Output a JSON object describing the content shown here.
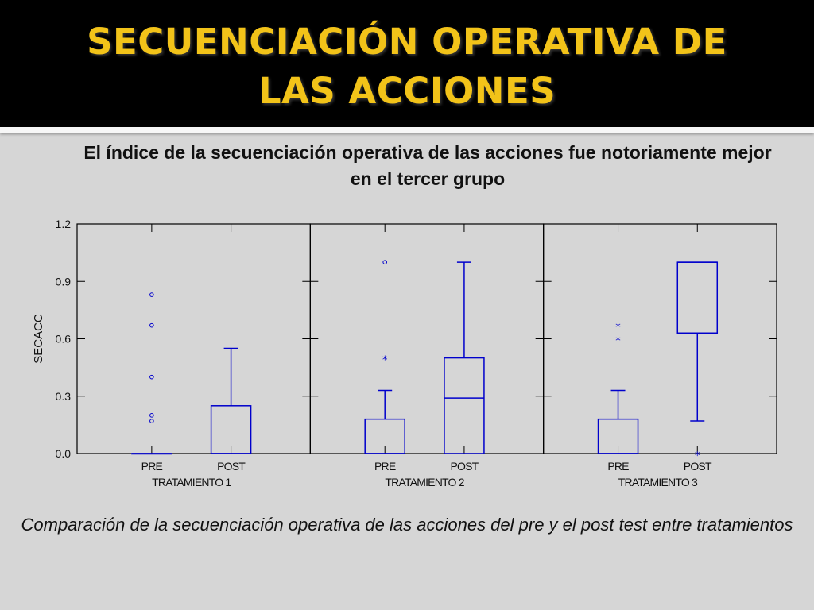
{
  "slide": {
    "title_line1": "SECUENCIACIÓN OPERATIVA DE",
    "title_line2": "LAS ACCIONES",
    "subtitle": "El índice de la secuenciación operativa de las acciones fue notoriamente mejor en el tercer grupo",
    "caption": "Comparación de la secuenciación operativa de las acciones del pre y el post test entre tratamientos"
  },
  "colors": {
    "title": "#f2c319",
    "box": "#0000cc"
  },
  "chart_data": {
    "type": "boxplot",
    "ylabel": "SECACC",
    "ylim": [
      0,
      1.2
    ],
    "yticks": [
      0,
      0.3,
      0.6,
      0.9,
      1.2
    ],
    "ytick_labels": [
      "0.0",
      "0.3",
      "0.6",
      "0.9",
      "1.2"
    ],
    "panels": [
      {
        "label": "TRATAMIENTO 1",
        "groups": [
          {
            "category": "PRE",
            "min": 0,
            "q1": 0,
            "median": 0,
            "q3": 0,
            "max": 0,
            "outliers_star": [],
            "outliers_circle": [
              0.17,
              0.2,
              0.4,
              0.67,
              0.83
            ]
          },
          {
            "category": "POST",
            "min": 0,
            "q1": 0,
            "median": 0,
            "q3": 0.25,
            "max": 0.55,
            "outliers_star": [],
            "outliers_circle": []
          }
        ]
      },
      {
        "label": "TRATAMIENTO 2",
        "groups": [
          {
            "category": "PRE",
            "min": 0,
            "q1": 0,
            "median": 0,
            "q3": 0.18,
            "max": 0.33,
            "outliers_star": [
              0.5
            ],
            "outliers_circle": [
              1.0
            ]
          },
          {
            "category": "POST",
            "min": 0,
            "q1": 0,
            "median": 0.29,
            "q3": 0.5,
            "max": 1.0,
            "outliers_star": [],
            "outliers_circle": []
          }
        ]
      },
      {
        "label": "TRATAMIENTO 3",
        "groups": [
          {
            "category": "PRE",
            "min": 0,
            "q1": 0,
            "median": 0,
            "q3": 0.18,
            "max": 0.33,
            "outliers_star": [
              0.6,
              0.67
            ],
            "outliers_circle": []
          },
          {
            "category": "POST",
            "min": 0.17,
            "q1": 0.63,
            "median": 1.0,
            "q3": 1.0,
            "max": 1.0,
            "outliers_star": [
              0
            ],
            "outliers_circle": []
          }
        ]
      }
    ]
  }
}
